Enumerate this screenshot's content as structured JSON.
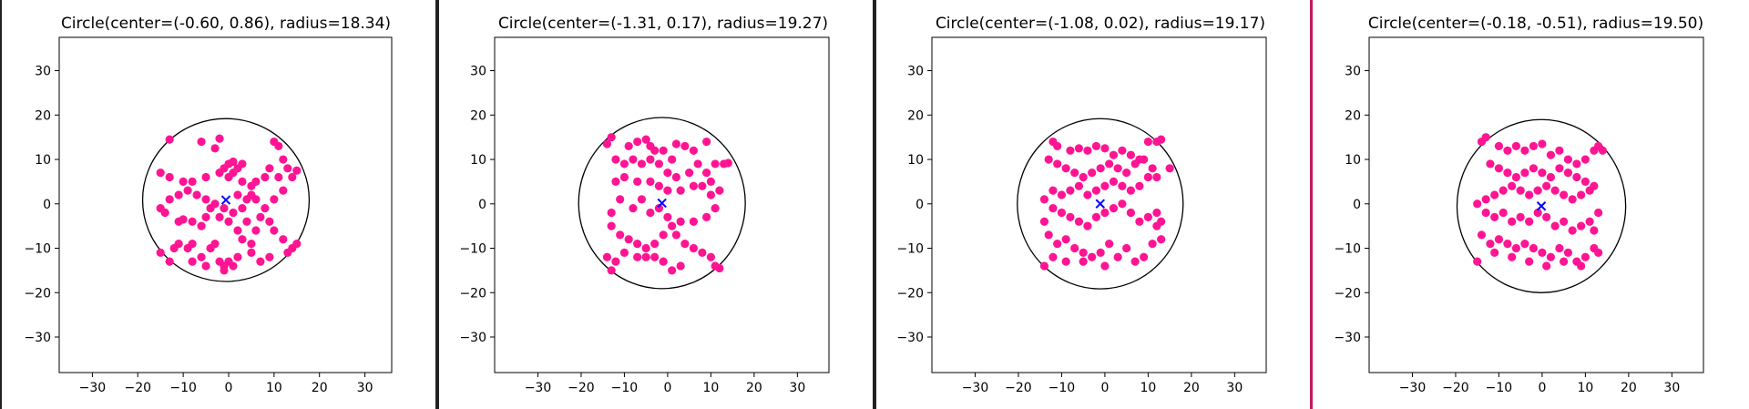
{
  "colors": {
    "point": "#ff1493",
    "center_marker": "#0000ff",
    "circle": "#000000",
    "divider_dark": "#222222",
    "divider_accent": "#c2185b"
  },
  "chart_data": [
    {
      "type": "scatter",
      "title": "Circle(center=(-0.60, 0.86), radius=18.34)",
      "center": [
        -0.6,
        0.86
      ],
      "radius": 18.34,
      "xlim": [
        -37.3,
        35.9
      ],
      "ylim": [
        -38.0,
        37.5
      ],
      "xticks": [
        -30,
        -20,
        -10,
        0,
        10,
        20,
        30
      ],
      "yticks": [
        -30,
        -20,
        -10,
        0,
        10,
        20,
        30
      ],
      "grid": false,
      "points": [
        [
          -13,
          14.5
        ],
        [
          -6,
          14
        ],
        [
          -2,
          14.7
        ],
        [
          -3,
          12.5
        ],
        [
          -15,
          7
        ],
        [
          -13,
          6
        ],
        [
          -10,
          5
        ],
        [
          -8,
          5
        ],
        [
          -5,
          6
        ],
        [
          -2,
          7
        ],
        [
          0,
          9
        ],
        [
          1,
          9.5
        ],
        [
          2,
          8
        ],
        [
          3,
          9
        ],
        [
          -1,
          8
        ],
        [
          0,
          6
        ],
        [
          1,
          7
        ],
        [
          3,
          5
        ],
        [
          5,
          4
        ],
        [
          6,
          5
        ],
        [
          8,
          6
        ],
        [
          10,
          14
        ],
        [
          11,
          13
        ],
        [
          12,
          10
        ],
        [
          13,
          8
        ],
        [
          14,
          6
        ],
        [
          15,
          7.5
        ],
        [
          11,
          6
        ],
        [
          9,
          8
        ],
        [
          12,
          3
        ],
        [
          10,
          1
        ],
        [
          8,
          -1
        ],
        [
          6,
          1
        ],
        [
          5,
          2
        ],
        [
          4,
          1
        ],
        [
          2,
          2
        ],
        [
          3,
          -1
        ],
        [
          1,
          -2
        ],
        [
          -1,
          -1
        ],
        [
          -3,
          0
        ],
        [
          -4,
          -1
        ],
        [
          -5,
          1
        ],
        [
          -7,
          2
        ],
        [
          -9,
          3
        ],
        [
          -11,
          2
        ],
        [
          -13,
          1
        ],
        [
          -15,
          -1
        ],
        [
          -14,
          -2
        ],
        [
          -11,
          -4
        ],
        [
          -10,
          -3.5
        ],
        [
          -8,
          -4
        ],
        [
          -6,
          -5
        ],
        [
          -5,
          -3
        ],
        [
          -2,
          -3
        ],
        [
          0,
          -4
        ],
        [
          2,
          -6
        ],
        [
          3,
          -8
        ],
        [
          5,
          -9
        ],
        [
          6,
          -6
        ],
        [
          4,
          -4
        ],
        [
          7,
          -3
        ],
        [
          9,
          -4
        ],
        [
          10,
          -6
        ],
        [
          12,
          -8
        ],
        [
          14,
          -10
        ],
        [
          15,
          -9
        ],
        [
          13,
          -11
        ],
        [
          9,
          -12
        ],
        [
          7,
          -13
        ],
        [
          5,
          -11
        ],
        [
          2,
          -12
        ],
        [
          0,
          -13
        ],
        [
          -1,
          -14
        ],
        [
          -2,
          -13
        ],
        [
          -3,
          -9
        ],
        [
          -4,
          -10
        ],
        [
          -6,
          -12
        ],
        [
          -8,
          -9
        ],
        [
          -9,
          -10
        ],
        [
          -11,
          -9
        ],
        [
          -12,
          -10
        ],
        [
          -13,
          -13
        ],
        [
          -15,
          -11
        ],
        [
          -8,
          -13
        ],
        [
          -5,
          -14
        ],
        [
          -1,
          -15
        ],
        [
          1,
          -14
        ]
      ]
    },
    {
      "type": "scatter",
      "title": "Circle(center=(-1.31, 0.17), radius=19.27)",
      "center": [
        -1.31,
        0.17
      ],
      "radius": 19.27,
      "xlim": [
        -40.0,
        37.3
      ],
      "ylim": [
        -38.0,
        37.5
      ],
      "xticks": [
        -30,
        -20,
        -10,
        0,
        10,
        20,
        30
      ],
      "yticks": [
        -30,
        -20,
        -10,
        0,
        10,
        20,
        30
      ],
      "grid": false,
      "points": [
        [
          -13,
          15
        ],
        [
          -14,
          13.5
        ],
        [
          -9,
          13
        ],
        [
          -7,
          14
        ],
        [
          -5,
          14.5
        ],
        [
          -4,
          13
        ],
        [
          -3,
          12
        ],
        [
          -1,
          12
        ],
        [
          1,
          10
        ],
        [
          2,
          13.5
        ],
        [
          4,
          13
        ],
        [
          6,
          12
        ],
        [
          9,
          14
        ],
        [
          11,
          9
        ],
        [
          13,
          9
        ],
        [
          14,
          9.2
        ],
        [
          -12,
          10
        ],
        [
          -10,
          9
        ],
        [
          -8,
          10
        ],
        [
          -6,
          9
        ],
        [
          -4,
          10
        ],
        [
          -2,
          9
        ],
        [
          0,
          7
        ],
        [
          2,
          6
        ],
        [
          5,
          7
        ],
        [
          7,
          9
        ],
        [
          9,
          7
        ],
        [
          10,
          5
        ],
        [
          8,
          4
        ],
        [
          6,
          4
        ],
        [
          3,
          3
        ],
        [
          0,
          3
        ],
        [
          -2,
          4
        ],
        [
          -4,
          5
        ],
        [
          -7,
          5
        ],
        [
          -10,
          6
        ],
        [
          -12,
          5
        ],
        [
          -11,
          1
        ],
        [
          -8,
          -1
        ],
        [
          -6,
          1
        ],
        [
          -4,
          -2
        ],
        [
          -2,
          -1
        ],
        [
          0,
          -3
        ],
        [
          3,
          -4
        ],
        [
          6,
          -4
        ],
        [
          9,
          -3
        ],
        [
          11,
          -1
        ],
        [
          10,
          2
        ],
        [
          12,
          3
        ],
        [
          -13,
          -2
        ],
        [
          -13,
          -5
        ],
        [
          -11,
          -7
        ],
        [
          -9,
          -8
        ],
        [
          -7,
          -9
        ],
        [
          -5,
          -10
        ],
        [
          -3,
          -9
        ],
        [
          -1,
          -7
        ],
        [
          1,
          -5
        ],
        [
          2,
          -7
        ],
        [
          4,
          -9
        ],
        [
          6,
          -10
        ],
        [
          8,
          -11
        ],
        [
          10,
          -12
        ],
        [
          11,
          -14
        ],
        [
          12,
          -14.5
        ],
        [
          3,
          -14
        ],
        [
          1,
          -15
        ],
        [
          -1,
          -13
        ],
        [
          -3,
          -12
        ],
        [
          -5,
          -12
        ],
        [
          -7,
          -12
        ],
        [
          -10,
          -11
        ],
        [
          -12,
          -13
        ],
        [
          -13,
          -15
        ],
        [
          -14,
          -12
        ]
      ]
    },
    {
      "type": "scatter",
      "title": "Circle(center=(-1.08, 0.02), radius=19.17)",
      "center": [
        -1.08,
        0.02
      ],
      "radius": 19.17,
      "xlim": [
        -40.0,
        37.3
      ],
      "ylim": [
        -38.0,
        37.5
      ],
      "xticks": [
        -30,
        -20,
        -10,
        0,
        10,
        20,
        30
      ],
      "yticks": [
        -30,
        -20,
        -10,
        0,
        10,
        20,
        30
      ],
      "grid": false,
      "points": [
        [
          -12,
          14
        ],
        [
          -11,
          13
        ],
        [
          -8,
          12
        ],
        [
          -6,
          12.5
        ],
        [
          -4,
          12
        ],
        [
          -2,
          13
        ],
        [
          0,
          12.5
        ],
        [
          2,
          11
        ],
        [
          4,
          12
        ],
        [
          6,
          11
        ],
        [
          8,
          10
        ],
        [
          10,
          14
        ],
        [
          12,
          14
        ],
        [
          13,
          14.5
        ],
        [
          15,
          8
        ],
        [
          -13,
          10
        ],
        [
          -11,
          9
        ],
        [
          -9,
          8
        ],
        [
          -7,
          7
        ],
        [
          -5,
          6
        ],
        [
          -3,
          7
        ],
        [
          -1,
          8
        ],
        [
          1,
          9
        ],
        [
          3,
          8
        ],
        [
          5,
          7
        ],
        [
          7,
          9
        ],
        [
          9,
          10
        ],
        [
          11,
          8
        ],
        [
          12,
          6
        ],
        [
          10,
          6
        ],
        [
          8,
          4
        ],
        [
          6,
          3
        ],
        [
          4,
          4
        ],
        [
          2,
          5
        ],
        [
          0,
          4
        ],
        [
          -2,
          3
        ],
        [
          -4,
          2
        ],
        [
          -6,
          4
        ],
        [
          -8,
          3
        ],
        [
          -10,
          2
        ],
        [
          -12,
          3
        ],
        [
          -14,
          1
        ],
        [
          -12,
          -1
        ],
        [
          -10,
          -2
        ],
        [
          -8,
          -3
        ],
        [
          -6,
          -4
        ],
        [
          -4,
          -5
        ],
        [
          -2,
          -3
        ],
        [
          0,
          -2
        ],
        [
          2,
          -1
        ],
        [
          4,
          0
        ],
        [
          6,
          -2
        ],
        [
          8,
          -4
        ],
        [
          10,
          -3
        ],
        [
          12,
          -2
        ],
        [
          13,
          -4
        ],
        [
          12,
          -5
        ],
        [
          -14,
          -4
        ],
        [
          -13,
          -7
        ],
        [
          -11,
          -9
        ],
        [
          -9,
          -8
        ],
        [
          -7,
          -10
        ],
        [
          -5,
          -11
        ],
        [
          -3,
          -12
        ],
        [
          -1,
          -11
        ],
        [
          1,
          -9
        ],
        [
          3,
          -12
        ],
        [
          5,
          -10
        ],
        [
          7,
          -13
        ],
        [
          9,
          -12
        ],
        [
          -12,
          -12
        ],
        [
          -14,
          -14
        ],
        [
          -9,
          -13
        ],
        [
          -5,
          -13
        ],
        [
          0,
          -14
        ],
        [
          11,
          -9
        ],
        [
          13,
          -8
        ]
      ]
    },
    {
      "type": "scatter",
      "title": "Circle(center=(-0.18, -0.51), radius=19.50)",
      "center": [
        -0.18,
        -0.51
      ],
      "radius": 19.5,
      "xlim": [
        -40.0,
        37.3
      ],
      "ylim": [
        -38.0,
        37.5
      ],
      "xticks": [
        -30,
        -20,
        -10,
        0,
        10,
        20,
        30
      ],
      "yticks": [
        -30,
        -20,
        -10,
        0,
        10,
        20,
        30
      ],
      "grid": false,
      "points": [
        [
          -14,
          14
        ],
        [
          -13,
          15
        ],
        [
          -10,
          13
        ],
        [
          -8,
          12
        ],
        [
          -6,
          13
        ],
        [
          -4,
          12
        ],
        [
          -2,
          13
        ],
        [
          0,
          13.5
        ],
        [
          2,
          11
        ],
        [
          4,
          12
        ],
        [
          6,
          10
        ],
        [
          8,
          9
        ],
        [
          10,
          10
        ],
        [
          12,
          12
        ],
        [
          13,
          13
        ],
        [
          14,
          12
        ],
        [
          -12,
          9
        ],
        [
          -10,
          8
        ],
        [
          -8,
          7
        ],
        [
          -6,
          6
        ],
        [
          -4,
          7
        ],
        [
          -2,
          8
        ],
        [
          0,
          7
        ],
        [
          2,
          6
        ],
        [
          4,
          8
        ],
        [
          6,
          7
        ],
        [
          8,
          6
        ],
        [
          10,
          5
        ],
        [
          12,
          4
        ],
        [
          11,
          3
        ],
        [
          9,
          2
        ],
        [
          7,
          1
        ],
        [
          5,
          2
        ],
        [
          3,
          3
        ],
        [
          1,
          4
        ],
        [
          -1,
          3
        ],
        [
          -3,
          2
        ],
        [
          -5,
          3
        ],
        [
          -7,
          4
        ],
        [
          -9,
          3
        ],
        [
          -11,
          2
        ],
        [
          -13,
          1
        ],
        [
          -15,
          0
        ],
        [
          -13,
          -2
        ],
        [
          -11,
          -3
        ],
        [
          -9,
          -2
        ],
        [
          -7,
          -4
        ],
        [
          -5,
          -3
        ],
        [
          -3,
          -4
        ],
        [
          -1,
          -2
        ],
        [
          1,
          -3
        ],
        [
          3,
          -5
        ],
        [
          5,
          -4
        ],
        [
          7,
          -6
        ],
        [
          9,
          -5
        ],
        [
          11,
          -4
        ],
        [
          13,
          -2
        ],
        [
          12,
          -6
        ],
        [
          -14,
          -7
        ],
        [
          -12,
          -9
        ],
        [
          -10,
          -8
        ],
        [
          -8,
          -9
        ],
        [
          -6,
          -10
        ],
        [
          -4,
          -9
        ],
        [
          -2,
          -10
        ],
        [
          0,
          -11
        ],
        [
          2,
          -12
        ],
        [
          4,
          -10
        ],
        [
          6,
          -11
        ],
        [
          8,
          -13
        ],
        [
          10,
          -12
        ],
        [
          12,
          -10
        ],
        [
          13,
          -11
        ],
        [
          -15,
          -13
        ],
        [
          -11,
          -11
        ],
        [
          -7,
          -12
        ],
        [
          -3,
          -13
        ],
        [
          1,
          -14
        ],
        [
          5,
          -13
        ],
        [
          9,
          -14
        ]
      ]
    }
  ]
}
